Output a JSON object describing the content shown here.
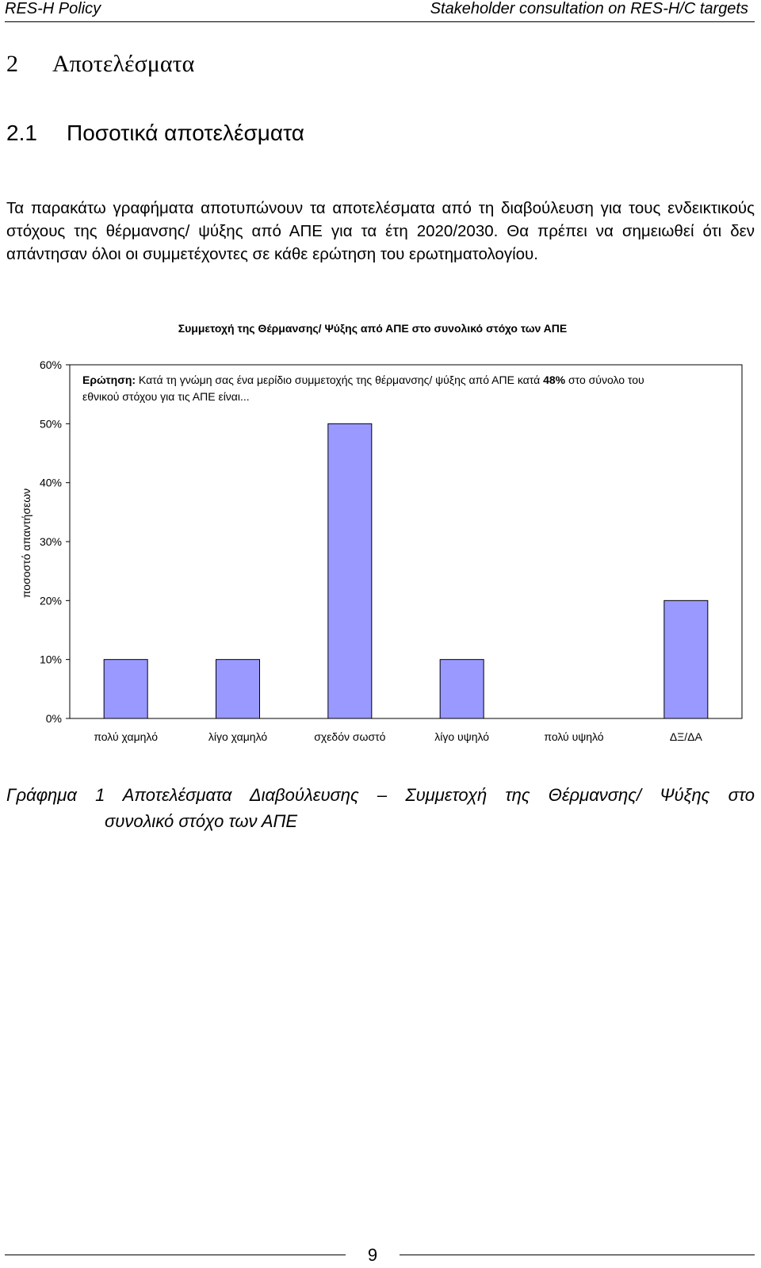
{
  "header": {
    "left": "RES-H Policy",
    "right": "Stakeholder consultation on RES-H/C targets"
  },
  "section": {
    "number": "2",
    "title": "Αποτελέσματα"
  },
  "subsection": {
    "number": "2.1",
    "title": "Ποσοτικά αποτελέσματα"
  },
  "intro_text": "Τα παρακάτω γραφήματα αποτυπώνουν τα αποτελέσματα από τη διαβούλευση για τους ενδεικτικούς στόχους της θέρμανσης/ ψύξης από ΑΠΕ για τα έτη 2020/2030. Θα πρέπει να σημειωθεί ότι δεν απάντησαν όλοι οι συμμετέχοντες σε κάθε ερώτηση του ερωτηματολογίου.",
  "chart_data": {
    "type": "bar",
    "title": "Συμμετοχή της Θέρμανσης/ Ψύξης από ΑΠΕ στο συνολικό στόχο των ΑΠΕ",
    "question": {
      "label": "Ερώτηση:",
      "text_before": " Κατά τη  γνώμη σας ένα μερίδιο συμμετοχής της θέρμανσης/ ψύξης από ΑΠΕ κατά ",
      "highlight": "48%",
      "text_after": " στο σύνολο του εθνικού στόχου για τις ΑΠΕ είναι..."
    },
    "ylabel": "ποσοστό απαντήσεων",
    "xlabel": "",
    "categories": [
      "πολύ χαμηλό",
      "λίγο χαμηλό",
      "σχεδόν σωστό",
      "λίγο υψηλό",
      "πολύ υψηλό",
      "ΔΞ/ΔΑ"
    ],
    "values": [
      10,
      10,
      50,
      10,
      0,
      20
    ],
    "y_ticks": [
      "0%",
      "10%",
      "20%",
      "30%",
      "40%",
      "50%",
      "60%"
    ],
    "ylim": [
      0,
      60
    ],
    "grid": false,
    "bar_color": "#9999ff"
  },
  "caption": {
    "line1": "Γράφημα 1 Αποτελέσματα Διαβούλευσης – Συμμετοχή της Θέρμανσης/ Ψύξης στο",
    "line2": "συνολικό στόχο των ΑΠΕ"
  },
  "page_number": "9"
}
